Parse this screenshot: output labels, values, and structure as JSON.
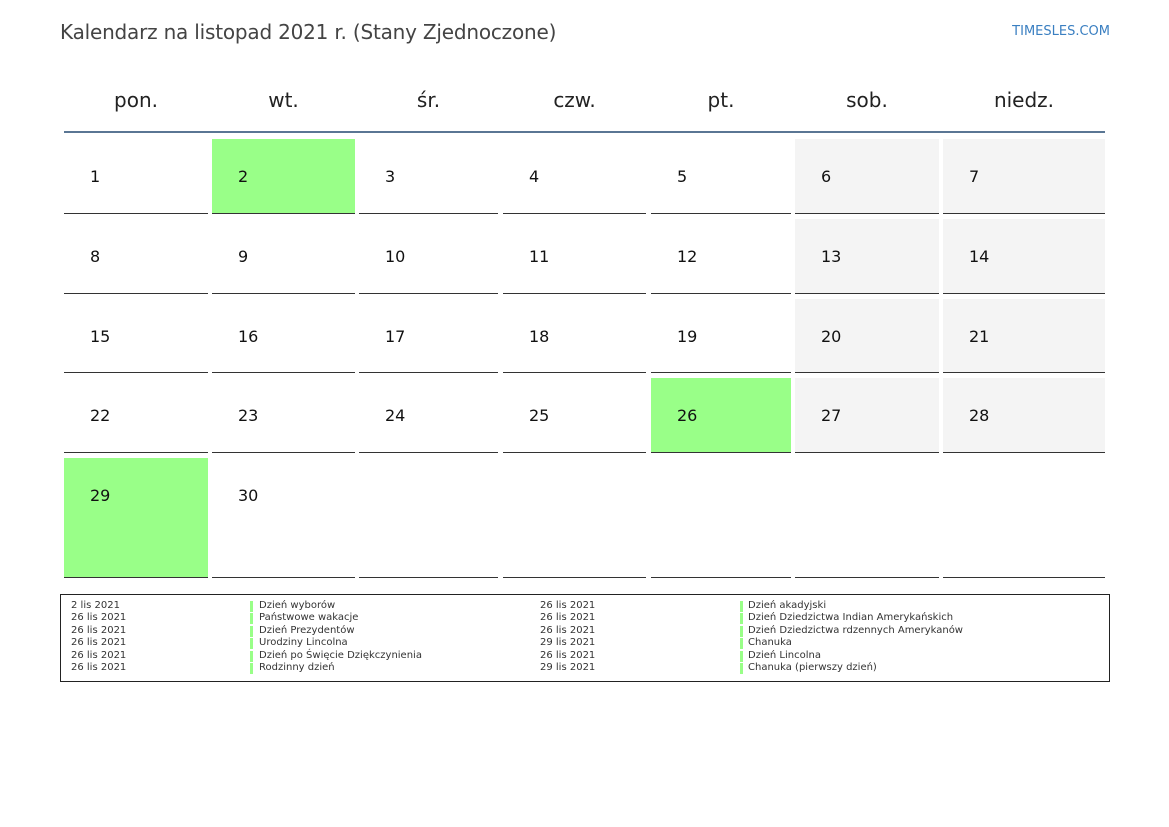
{
  "title": "Kalendarz na listopad 2021 r. (Stany Zjednoczone)",
  "brand": "TIMESLES.COM",
  "weekdays": [
    "pon.",
    "wt.",
    "śr.",
    "czw.",
    "pt.",
    "sob.",
    "niedz."
  ],
  "colors": {
    "holiday": "#99ff88",
    "weekend": "#f4f4f4",
    "header_line": "#5a7694",
    "brand": "#3a7fc1"
  },
  "weeks": [
    [
      {
        "day": "1"
      },
      {
        "day": "2",
        "holiday": true
      },
      {
        "day": "3"
      },
      {
        "day": "4"
      },
      {
        "day": "5"
      },
      {
        "day": "6",
        "weekend": true
      },
      {
        "day": "7",
        "weekend": true
      }
    ],
    [
      {
        "day": "8"
      },
      {
        "day": "9"
      },
      {
        "day": "10"
      },
      {
        "day": "11"
      },
      {
        "day": "12"
      },
      {
        "day": "13",
        "weekend": true
      },
      {
        "day": "14",
        "weekend": true
      }
    ],
    [
      {
        "day": "15"
      },
      {
        "day": "16"
      },
      {
        "day": "17"
      },
      {
        "day": "18"
      },
      {
        "day": "19"
      },
      {
        "day": "20",
        "weekend": true
      },
      {
        "day": "21",
        "weekend": true
      }
    ],
    [
      {
        "day": "22"
      },
      {
        "day": "23"
      },
      {
        "day": "24"
      },
      {
        "day": "25"
      },
      {
        "day": "26",
        "holiday": true
      },
      {
        "day": "27",
        "weekend": true
      },
      {
        "day": "28",
        "weekend": true
      }
    ],
    [
      {
        "day": "29",
        "holiday": true
      },
      {
        "day": "30"
      },
      {
        "day": ""
      },
      {
        "day": ""
      },
      {
        "day": ""
      },
      {
        "day": ""
      },
      {
        "day": ""
      }
    ]
  ],
  "legend": {
    "left": [
      {
        "date": "2 lis 2021",
        "name": "Dzień wyborów"
      },
      {
        "date": "26 lis 2021",
        "name": "Państwowe wakacje"
      },
      {
        "date": "26 lis 2021",
        "name": "Dzień Prezydentów"
      },
      {
        "date": "26 lis 2021",
        "name": "Urodziny Lincolna"
      },
      {
        "date": "26 lis 2021",
        "name": "Dzień po Święcie Dziękczynienia"
      },
      {
        "date": "26 lis 2021",
        "name": "Rodzinny dzień"
      }
    ],
    "right": [
      {
        "date": "26 lis 2021",
        "name": "Dzień akadyjski"
      },
      {
        "date": "26 lis 2021",
        "name": "Dzień Dziedzictwa Indian Amerykańskich"
      },
      {
        "date": "26 lis 2021",
        "name": "Dzień Dziedzictwa rdzennych Amerykanów"
      },
      {
        "date": "29 lis 2021",
        "name": "Chanuka"
      },
      {
        "date": "26 lis 2021",
        "name": "Dzień Lincolna"
      },
      {
        "date": "29 lis 2021",
        "name": "Chanuka (pierwszy dzień)"
      }
    ]
  }
}
